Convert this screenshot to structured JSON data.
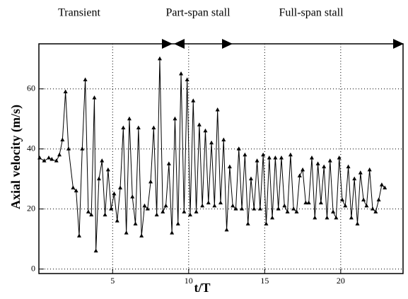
{
  "chart_data": {
    "type": "line",
    "annotations": [
      "Transient",
      "Part-span stall",
      "Full-span stall"
    ],
    "xlabel": "t/T",
    "ylabel": "Axial velocity (m/s)",
    "x": [
      0.2,
      0.5,
      0.8,
      1.0,
      1.3,
      1.5,
      1.7,
      1.9,
      2.1,
      2.4,
      2.6,
      2.8,
      3.0,
      3.2,
      3.4,
      3.6,
      3.8,
      3.9,
      4.1,
      4.3,
      4.5,
      4.7,
      4.9,
      5.1,
      5.3,
      5.5,
      5.7,
      5.9,
      6.1,
      6.3,
      6.5,
      6.7,
      6.9,
      7.1,
      7.3,
      7.5,
      7.7,
      7.9,
      8.1,
      8.3,
      8.5,
      8.7,
      8.9,
      9.1,
      9.3,
      9.5,
      9.7,
      9.9,
      10.1,
      10.3,
      10.5,
      10.7,
      10.9,
      11.1,
      11.3,
      11.5,
      11.7,
      11.9,
      12.1,
      12.3,
      12.5,
      12.7,
      12.9,
      13.1,
      13.3,
      13.5,
      13.7,
      13.9,
      14.1,
      14.3,
      14.5,
      14.7,
      14.9,
      15.1,
      15.3,
      15.5,
      15.7,
      15.9,
      16.1,
      16.3,
      16.5,
      16.7,
      16.9,
      17.1,
      17.3,
      17.5,
      17.7,
      17.9,
      18.1,
      18.3,
      18.5,
      18.7,
      18.9,
      19.1,
      19.3,
      19.5,
      19.7,
      19.9,
      20.1,
      20.3,
      20.5,
      20.7,
      20.9,
      21.1,
      21.3,
      21.5,
      21.7,
      21.9,
      22.1,
      22.3,
      22.5,
      22.7,
      22.9
    ],
    "series": [
      {
        "color": "#000000",
        "values": [
          37,
          36,
          37,
          36.5,
          36,
          38,
          43,
          59,
          40,
          27,
          26,
          11,
          40,
          63,
          19,
          18,
          57,
          6,
          30,
          36,
          18,
          33,
          20,
          25,
          16,
          27,
          47,
          12,
          50,
          24,
          15,
          47,
          11,
          21,
          20,
          29,
          47,
          18,
          70,
          19,
          21,
          35,
          12,
          50,
          15,
          65,
          19,
          63,
          18,
          56,
          19,
          48,
          21,
          46,
          22,
          42,
          21,
          53,
          22,
          43,
          13,
          34,
          21,
          20,
          40,
          20,
          38,
          15,
          30,
          20,
          36,
          20,
          38,
          15,
          37,
          17,
          37,
          20,
          37,
          21,
          19,
          38,
          20,
          19,
          31,
          33,
          22,
          22,
          37,
          17,
          35,
          22,
          34,
          17,
          36,
          19,
          17,
          37,
          23,
          21,
          34,
          17,
          30,
          15,
          32,
          23,
          21,
          33,
          20,
          19,
          23,
          28,
          27
        ]
      }
    ],
    "xlim": [
      0.15,
      24.1
    ],
    "ylim": [
      -1.5,
      75
    ],
    "xticks": [
      5,
      10,
      15,
      20
    ],
    "yticks": [
      0,
      20,
      40,
      60
    ],
    "grid": true
  }
}
